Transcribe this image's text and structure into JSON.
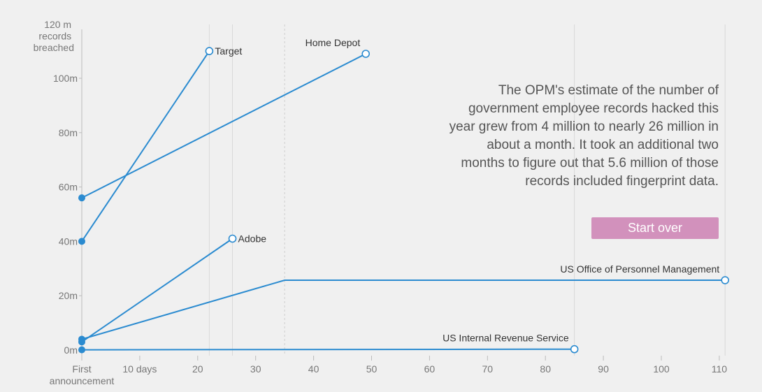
{
  "annotation": {
    "text": "The OPM's estimate of the number of government employee records hacked this year grew from 4 million to nearly 26 million in about a month. It took an additional two months to figure out that 5.6 million of those records included fingerprint data."
  },
  "controls": {
    "start_over_label": "Start over",
    "accent_color": "#d291bc"
  },
  "chart_data": {
    "type": "line",
    "title": "",
    "xlabel": "",
    "ylabel": "",
    "y_axis_top_label": [
      "120 m",
      "records",
      "breached"
    ],
    "xlim": [
      0,
      112
    ],
    "ylim": [
      0,
      120
    ],
    "y_ticks": [
      {
        "value": 0,
        "label": "0m"
      },
      {
        "value": 20,
        "label": "20m"
      },
      {
        "value": 40,
        "label": "40m"
      },
      {
        "value": 60,
        "label": "60m"
      },
      {
        "value": 80,
        "label": "80m"
      },
      {
        "value": 100,
        "label": "100m"
      }
    ],
    "x_ticks": [
      {
        "value": 0,
        "label": [
          "First",
          "announcement"
        ]
      },
      {
        "value": 10,
        "label": [
          "10 days"
        ]
      },
      {
        "value": 20,
        "label": [
          "20"
        ]
      },
      {
        "value": 30,
        "label": [
          "30"
        ]
      },
      {
        "value": 40,
        "label": [
          "40"
        ]
      },
      {
        "value": 50,
        "label": [
          "50"
        ]
      },
      {
        "value": 60,
        "label": [
          "60"
        ]
      },
      {
        "value": 70,
        "label": [
          "70"
        ]
      },
      {
        "value": 80,
        "label": [
          "80"
        ]
      },
      {
        "value": 90,
        "label": [
          "90"
        ]
      },
      {
        "value": 100,
        "label": [
          "100"
        ]
      },
      {
        "value": 110,
        "label": [
          "110"
        ]
      }
    ],
    "reference_lines": [
      {
        "x": 22,
        "style": "solid"
      },
      {
        "x": 26,
        "style": "solid"
      },
      {
        "x": 35,
        "style": "dashed"
      },
      {
        "x": 85,
        "style": "solid"
      },
      {
        "x": 111,
        "style": "solid"
      }
    ],
    "line_color": "#2b8bd0",
    "series": [
      {
        "name": "Target",
        "label_position": "right",
        "points": [
          [
            0,
            40
          ],
          [
            22,
            110
          ]
        ]
      },
      {
        "name": "Home Depot",
        "label_position": "above-left",
        "points": [
          [
            0,
            56
          ],
          [
            49,
            109
          ]
        ]
      },
      {
        "name": "Adobe",
        "label_position": "right",
        "points": [
          [
            0,
            3
          ],
          [
            26,
            41
          ]
        ]
      },
      {
        "name": "US Office of Personnel Management",
        "label_position": "above-left",
        "points": [
          [
            0,
            4
          ],
          [
            35,
            25.7
          ],
          [
            111,
            25.7
          ]
        ]
      },
      {
        "name": "US Internal Revenue Service",
        "label_position": "above-left",
        "points": [
          [
            0,
            0.1
          ],
          [
            85,
            0.33
          ]
        ]
      }
    ]
  }
}
